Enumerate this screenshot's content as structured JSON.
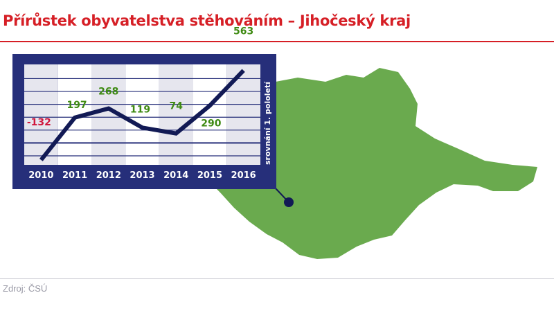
{
  "title": "Přírůstek obyvatelstva stěhováním – Jihočeský kraj",
  "source": "Zdroj: ČSÚ",
  "colors": {
    "title": "#d61f26",
    "panel": "#262f7a",
    "line": "#121a55",
    "positive": "#3e8a12",
    "negative": "#d0163c",
    "map": "#6aaa4e"
  },
  "chart_data": {
    "type": "line",
    "categories": [
      "2010",
      "2011",
      "2012",
      "2013",
      "2014",
      "2015",
      "2016"
    ],
    "values": [
      -132,
      197,
      268,
      119,
      74,
      290,
      563
    ],
    "data_labels": [
      "-132",
      "197",
      "268",
      "119",
      "74",
      "290",
      "563"
    ],
    "side_note": "srovnání 1. pololetí",
    "ylim": [
      -170,
      610
    ],
    "grid": true,
    "gridlines": [
      -100,
      0,
      100,
      200,
      300,
      400,
      500
    ]
  },
  "map": {
    "region": "Jihočeský kraj",
    "marker": "dot"
  }
}
